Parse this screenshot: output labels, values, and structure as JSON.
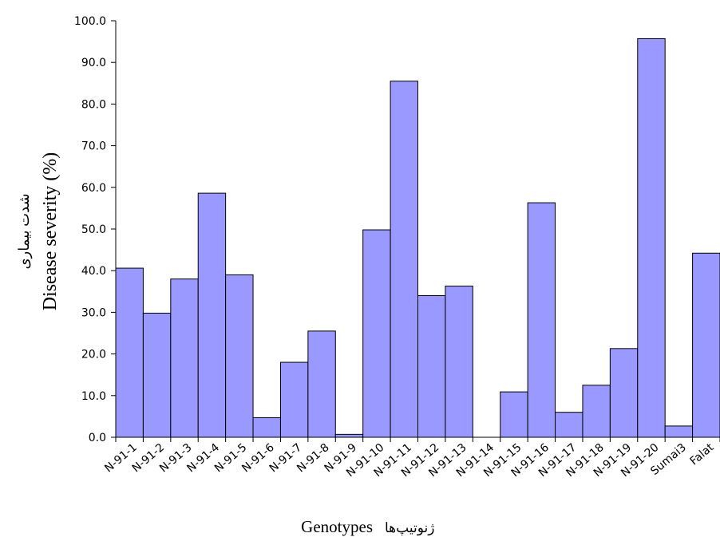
{
  "chart_data": {
    "type": "bar",
    "title": "",
    "xlabel": "Genotypes",
    "xlabel_fa": "ژنوتیپ‌ها",
    "ylabel": "Disease severity (%)",
    "ylabel_fa": "شدت بیماری",
    "ylim": [
      0,
      100
    ],
    "yticks": [
      "0.0",
      "10.0",
      "20.0",
      "30.0",
      "40.0",
      "50.0",
      "60.0",
      "70.0",
      "80.0",
      "90.0",
      "100.0"
    ],
    "grid": false,
    "legend": "none",
    "bar_color": "#9999ff",
    "categories": [
      "N-91-1",
      "N-91-2",
      "N-91-3",
      "N-91-4",
      "N-91-5",
      "N-91-6",
      "N-91-7",
      "N-91-8",
      "N-91-9",
      "N-91-10",
      "N-91-11",
      "N-91-12",
      "N-91-13",
      "N-91-14",
      "N-91-15",
      "N-91-16",
      "N-91-17",
      "N-91-18",
      "N-91-19",
      "N-91-20",
      "Sumai3",
      "Falat"
    ],
    "values": [
      40.6,
      29.8,
      38.0,
      58.6,
      39.0,
      4.7,
      18.0,
      25.5,
      0.7,
      49.8,
      85.5,
      34.0,
      36.3,
      0.0,
      10.9,
      56.3,
      6.0,
      12.5,
      21.3,
      95.7,
      2.7,
      44.2
    ]
  }
}
